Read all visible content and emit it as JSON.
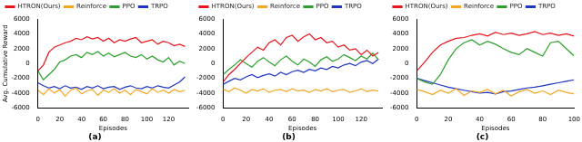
{
  "chart_data": [
    {
      "type": "line",
      "title": "(a)",
      "xlabel": "Episodes",
      "ylabel": "Avg. Cumulative Reward",
      "legend": "upper left",
      "grid": false,
      "xlim": [
        0,
        138
      ],
      "xticks": [
        0,
        20,
        40,
        60,
        80,
        100,
        120
      ],
      "ylim": [
        -6000,
        6000
      ],
      "yticks": [
        -6000,
        -4000,
        -2000,
        0,
        2000,
        4000,
        6000
      ],
      "x": [
        0,
        5,
        10,
        15,
        20,
        25,
        30,
        35,
        40,
        45,
        50,
        55,
        60,
        65,
        70,
        75,
        80,
        85,
        90,
        95,
        100,
        105,
        110,
        115,
        120,
        125,
        130,
        135
      ],
      "series": [
        {
          "name": "HTRON(Ours)",
          "color": "#e8151b",
          "values": [
            -1000,
            -200,
            1500,
            2200,
            2500,
            2800,
            3000,
            3400,
            3200,
            3600,
            3300,
            3500,
            3000,
            3400,
            2800,
            3200,
            3000,
            3300,
            3500,
            2800,
            3000,
            3200,
            2600,
            3000,
            2800,
            2400,
            2600,
            2300
          ]
        },
        {
          "name": "Reinforce",
          "color": "#f5a623",
          "values": [
            -3600,
            -4200,
            -3400,
            -4000,
            -3500,
            -4400,
            -3600,
            -3300,
            -4100,
            -3700,
            -3500,
            -4300,
            -3600,
            -3900,
            -3400,
            -4000,
            -3600,
            -4200,
            -3500,
            -3800,
            -4100,
            -3400,
            -3900,
            -3600,
            -4000,
            -3500,
            -3800,
            -3600
          ]
        },
        {
          "name": "PPO",
          "color": "#2ca02c",
          "values": [
            -1000,
            -2200,
            -1500,
            -800,
            200,
            500,
            1000,
            1200,
            800,
            1500,
            1200,
            1600,
            1000,
            1400,
            900,
            1200,
            1500,
            1000,
            800,
            1200,
            600,
            1000,
            500,
            200,
            800,
            -200,
            300,
            0
          ]
        },
        {
          "name": "TRPO",
          "color": "#2035c0",
          "values": [
            -2600,
            -3000,
            -3300,
            -3100,
            -3400,
            -3000,
            -3300,
            -3200,
            -3500,
            -3100,
            -3300,
            -3000,
            -3400,
            -3200,
            -3100,
            -3500,
            -3200,
            -3000,
            -3300,
            -3400,
            -3100,
            -3300,
            -3000,
            -3200,
            -3300,
            -2900,
            -2500,
            -1800
          ]
        }
      ]
    },
    {
      "type": "line",
      "title": "(b)",
      "xlabel": "Episodes",
      "legend": "upper left",
      "grid": false,
      "xlim": [
        0,
        138
      ],
      "xticks": [
        0,
        20,
        40,
        60,
        80,
        100,
        120
      ],
      "ylim": [
        -6000,
        6000
      ],
      "yticks": [
        -6000,
        -4000,
        -2000,
        0,
        2000,
        4000,
        6000
      ],
      "x": [
        0,
        5,
        10,
        15,
        20,
        25,
        30,
        35,
        40,
        45,
        50,
        55,
        60,
        65,
        70,
        75,
        80,
        85,
        90,
        95,
        100,
        105,
        110,
        115,
        120,
        125,
        130,
        135
      ],
      "series": [
        {
          "name": "HTRON(Ours)",
          "color": "#e8151b",
          "values": [
            -2500,
            -1500,
            -800,
            0,
            800,
            1500,
            2200,
            1800,
            2800,
            3200,
            2500,
            3500,
            3800,
            3000,
            3600,
            4000,
            3200,
            3500,
            2800,
            3000,
            2200,
            2500,
            1800,
            2000,
            1200,
            1800,
            1000,
            1500
          ]
        },
        {
          "name": "Reinforce",
          "color": "#f5a623",
          "values": [
            -3500,
            -3800,
            -3300,
            -3600,
            -4000,
            -3500,
            -3700,
            -3400,
            -3900,
            -3600,
            -3500,
            -3800,
            -3400,
            -3700,
            -3600,
            -3900,
            -3500,
            -3700,
            -3400,
            -3800,
            -3600,
            -3500,
            -3900,
            -3700,
            -3400,
            -3800,
            -3600,
            -3700
          ]
        },
        {
          "name": "PPO",
          "color": "#2ca02c",
          "values": [
            -1500,
            -800,
            -200,
            500,
            0,
            -500,
            300,
            800,
            200,
            -300,
            500,
            1000,
            300,
            -200,
            600,
            200,
            -400,
            500,
            900,
            300,
            600,
            1200,
            800,
            400,
            1000,
            600,
            1400,
            500
          ]
        },
        {
          "name": "TRPO",
          "color": "#2035c0",
          "values": [
            -2800,
            -2400,
            -2000,
            -2200,
            -1800,
            -1500,
            -1900,
            -1600,
            -1400,
            -1700,
            -1200,
            -1500,
            -1100,
            -900,
            -1200,
            -800,
            -1000,
            -600,
            -800,
            -400,
            -600,
            -200,
            0,
            -300,
            200,
            400,
            0,
            600
          ]
        }
      ]
    },
    {
      "type": "line",
      "title": "(c)",
      "xlabel": "Episodes",
      "legend": "upper left",
      "grid": false,
      "xlim": [
        0,
        100
      ],
      "xticks": [
        0,
        20,
        40,
        60,
        80,
        100
      ],
      "ylim": [
        -6000,
        6000
      ],
      "yticks": [
        -6000,
        -4000,
        -2000,
        0,
        2000,
        4000,
        6000
      ],
      "x": [
        0,
        5,
        10,
        15,
        20,
        25,
        30,
        35,
        40,
        45,
        50,
        55,
        60,
        65,
        70,
        75,
        80,
        85,
        90,
        95,
        100
      ],
      "series": [
        {
          "name": "HTRON(Ours)",
          "color": "#e8151b",
          "values": [
            -1000,
            200,
            1500,
            2500,
            3000,
            3400,
            3500,
            3800,
            4000,
            3700,
            4200,
            3900,
            4100,
            3800,
            4000,
            4300,
            3900,
            4100,
            3800,
            4000,
            3700
          ]
        },
        {
          "name": "Reinforce",
          "color": "#f5a623",
          "values": [
            -3500,
            -3800,
            -4200,
            -3600,
            -4000,
            -3400,
            -4300,
            -3700,
            -3900,
            -3500,
            -4100,
            -3600,
            -4400,
            -3800,
            -3500,
            -4000,
            -3700,
            -4200,
            -3600,
            -3900,
            -4100
          ]
        },
        {
          "name": "PPO",
          "color": "#2ca02c",
          "values": [
            -2000,
            -2500,
            -2800,
            -1500,
            500,
            2000,
            2800,
            3200,
            2500,
            3000,
            2600,
            2000,
            1500,
            1200,
            2000,
            1500,
            1000,
            2800,
            3000,
            2000,
            1000
          ]
        },
        {
          "name": "TRPO",
          "color": "#2035c0",
          "values": [
            -2000,
            -2300,
            -2600,
            -2900,
            -3200,
            -3400,
            -3600,
            -3800,
            -4000,
            -3900,
            -4100,
            -3800,
            -3700,
            -3500,
            -3300,
            -3200,
            -3000,
            -2800,
            -2600,
            -2400,
            -2200
          ]
        }
      ]
    }
  ]
}
